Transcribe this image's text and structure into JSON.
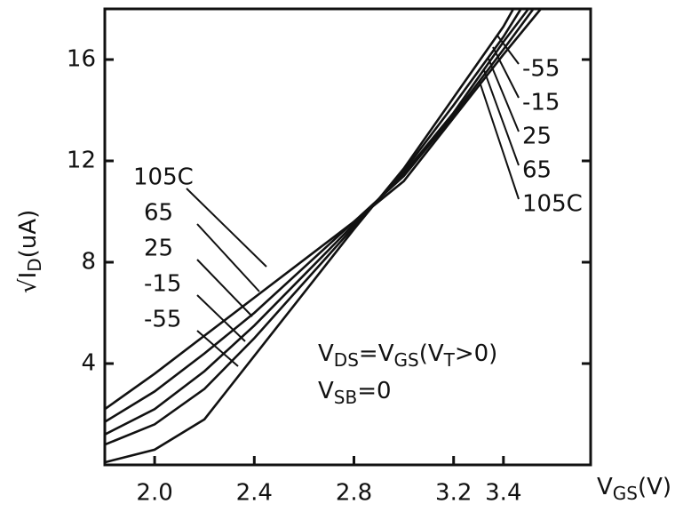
{
  "chart_data": {
    "type": "line",
    "xlabel": [
      "V",
      "GS",
      "(V)"
    ],
    "ylabel": [
      "√I",
      "D",
      "(uA)"
    ],
    "xlim": [
      1.8,
      3.75
    ],
    "ylim": [
      0,
      18
    ],
    "xticks": [
      {
        "value": 2.0,
        "label": "2.0"
      },
      2.4,
      2.8,
      3.2,
      3.4
    ],
    "yticks": [
      4,
      8,
      12,
      16
    ],
    "series": [
      {
        "name": "-55",
        "color": "#111111",
        "x": [
          1.8,
          2.0,
          2.2,
          2.4,
          2.6,
          2.8,
          3.0,
          3.2,
          3.4,
          3.44
        ],
        "values": [
          0.1,
          0.6,
          1.8,
          4.3,
          6.8,
          9.3,
          11.7,
          14.5,
          17.3,
          18
        ]
      },
      {
        "name": "-15",
        "color": "#111111",
        "x": [
          1.8,
          2.0,
          2.2,
          2.4,
          2.6,
          2.8,
          3.0,
          3.2,
          3.4,
          3.47
        ],
        "values": [
          0.8,
          1.6,
          3.0,
          5.0,
          7.2,
          9.4,
          11.6,
          14.2,
          16.9,
          18
        ]
      },
      {
        "name": "25",
        "color": "#111111",
        "x": [
          1.8,
          2.0,
          2.2,
          2.4,
          2.6,
          2.8,
          3.0,
          3.2,
          3.4,
          3.5
        ],
        "values": [
          1.2,
          2.2,
          3.7,
          5.5,
          7.5,
          9.5,
          11.5,
          13.9,
          16.7,
          18
        ]
      },
      {
        "name": "65",
        "color": "#111111",
        "x": [
          1.8,
          2.0,
          2.2,
          2.4,
          2.6,
          2.8,
          3.0,
          3.2,
          3.4,
          3.52
        ],
        "values": [
          1.7,
          2.9,
          4.4,
          6.0,
          7.8,
          9.6,
          11.4,
          13.8,
          16.4,
          18
        ]
      },
      {
        "name": "105C",
        "color": "#111111",
        "x": [
          1.8,
          2.0,
          2.2,
          2.4,
          2.6,
          2.8,
          3.0,
          3.2,
          3.4,
          3.55
        ],
        "values": [
          2.2,
          3.6,
          5.1,
          6.6,
          8.1,
          9.6,
          11.2,
          13.7,
          16.2,
          18
        ]
      }
    ],
    "annotations": [
      [
        "V",
        "DS",
        "=V",
        "GS",
        "(V",
        "T",
        ">0)"
      ],
      [
        "V",
        "SB",
        "=0"
      ]
    ]
  }
}
